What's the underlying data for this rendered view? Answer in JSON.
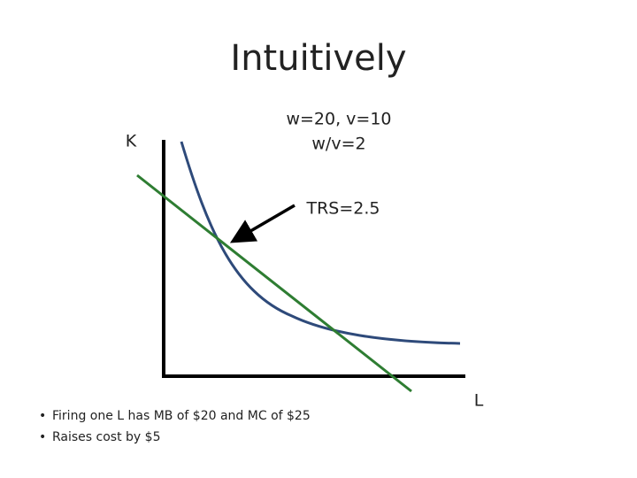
{
  "title": "Intuitively",
  "axes": {
    "y_label": "K",
    "x_label": "L"
  },
  "annotations": {
    "prices": "w=20, v=10",
    "price_ratio": "w/v=2",
    "trs": "TRS=2.5"
  },
  "bullets": [
    "Firing one L has MB of $20 and MC of $25",
    "Raises cost by $5"
  ]
}
